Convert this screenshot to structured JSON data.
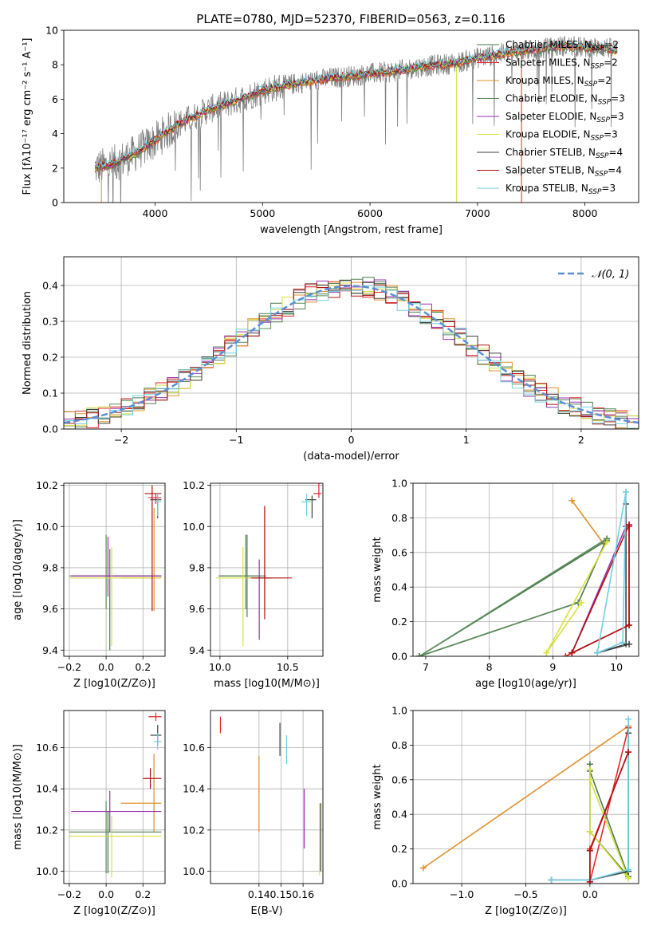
{
  "figure": {
    "title": "PLATE=0780, MJD=52370, FIBERID=0563, z=0.116"
  },
  "series_styles": [
    {
      "name": "Chabrier MILES",
      "nssp": "2",
      "color": "#4a7a4a"
    },
    {
      "name": "Salpeter MILES",
      "nssp": "2",
      "color": "#e8262a"
    },
    {
      "name": "Kroupa MILES",
      "nssp": "2",
      "color": "#e0902a"
    },
    {
      "name": "Chabrier ELODIE",
      "nssp": "3",
      "color": "#5a8a5a"
    },
    {
      "name": "Salpeter ELODIE",
      "nssp": "3",
      "color": "#9b30b0"
    },
    {
      "name": "Kroupa ELODIE",
      "nssp": "3",
      "color": "#d8e040"
    },
    {
      "name": "Chabrier STELIB",
      "nssp": "4",
      "color": "#404040"
    },
    {
      "name": "Salpeter STELIB",
      "nssp": "4",
      "color": "#b01010"
    },
    {
      "name": "Kroupa STELIB",
      "nssp": "3",
      "color": "#70d0e0"
    }
  ],
  "chart_data": [
    {
      "id": "spectrum",
      "type": "line",
      "title": "PLATE=0780, MJD=52370, FIBERID=0563, z=0.116",
      "xlabel": "wavelength [Angstrom, rest frame]",
      "ylabel": "Flux [fλ10⁻¹⁷ erg cm⁻² s⁻¹ A⁻¹]",
      "xlim": [
        3150,
        8500
      ],
      "ylim": [
        0,
        10
      ],
      "xticks": [
        4000,
        5000,
        6000,
        7000,
        8000
      ],
      "yticks": [
        0,
        2,
        4,
        6,
        8,
        10
      ],
      "grid": false,
      "legend": "right",
      "data_color": "#808080",
      "model_anchor_x": [
        3440,
        3600,
        3800,
        4000,
        4200,
        4500,
        4800,
        5000,
        5300,
        5600,
        5900,
        6200,
        6500,
        6800,
        7000,
        7200,
        7400,
        7600,
        7800,
        8000,
        8200,
        8300
      ],
      "model_anchor_y": [
        2.0,
        2.2,
        2.8,
        3.6,
        4.5,
        5.4,
        6.0,
        6.5,
        6.9,
        7.2,
        7.4,
        7.6,
        7.9,
        8.1,
        8.4,
        8.6,
        8.8,
        8.9,
        9.1,
        9.0,
        9.0,
        8.8
      ]
    },
    {
      "id": "residual-hist",
      "type": "histogram",
      "xlabel": "(data-model)/error",
      "ylabel": "Normed distribution",
      "xlim": [
        -2.5,
        2.5
      ],
      "ylim": [
        0,
        0.48
      ],
      "xticks": [
        -2,
        -1,
        0,
        1,
        2
      ],
      "yticks": [
        0.0,
        0.1,
        0.2,
        0.3,
        0.4
      ],
      "grid": true,
      "legend": "top-right",
      "gaussian_label": "𝒩(0, 1)",
      "gaussian_color": "#5b8fd6",
      "bin_width": 0.1
    },
    {
      "id": "age-vs-Z",
      "type": "errorbar",
      "xlabel": "Z [log10(Z/Z⊙)]",
      "ylabel": "age  [log10(age/yr)]",
      "xlim": [
        -0.23,
        0.32
      ],
      "ylim": [
        9.37,
        10.21
      ],
      "xticks": [
        -0.2,
        0.0,
        0.2
      ],
      "yticks": [
        9.4,
        9.6,
        9.8,
        10.0,
        10.2
      ],
      "grid": true,
      "points": [
        {
          "s": 0,
          "x": 0.02,
          "xe": [
            0.2,
            0.28
          ],
          "y": 9.76,
          "ye": [
            0.36,
            0.13
          ]
        },
        {
          "s": 1,
          "x": 0.27,
          "xe": [
            0.04,
            0.03
          ],
          "y": 10.14,
          "ye": [
            0.03,
            0.02
          ]
        },
        {
          "s": 2,
          "x": 0.26,
          "xe": [
            0.18,
            0.04
          ],
          "y": 9.75,
          "ye": [
            0.16,
            0.34
          ]
        },
        {
          "s": 3,
          "x": 0.0,
          "xe": [
            0.2,
            0.3
          ],
          "y": 9.76,
          "ye": [
            0.16,
            0.2
          ]
        },
        {
          "s": 4,
          "x": 0.01,
          "xe": [
            0.2,
            0.29
          ],
          "y": 9.76,
          "ye": [
            0.1,
            0.19
          ]
        },
        {
          "s": 5,
          "x": 0.03,
          "xe": [
            0.23,
            0.27
          ],
          "y": 9.75,
          "ye": [
            0.33,
            0.15
          ]
        },
        {
          "s": 6,
          "x": 0.28,
          "xe": [
            0.04,
            0.02
          ],
          "y": 10.13,
          "ye": [
            0.09,
            0.02
          ]
        },
        {
          "s": 7,
          "x": 0.25,
          "xe": [
            0.04,
            0.05
          ],
          "y": 10.16,
          "ye": [
            0.57,
            0.04
          ]
        },
        {
          "s": 8,
          "x": 0.28,
          "xe": [
            0.02,
            0.02
          ],
          "y": 10.12,
          "ye": [
            0.07,
            0.04
          ]
        }
      ]
    },
    {
      "id": "age-vs-mass",
      "type": "errorbar",
      "xlabel": "mass [log10(M/M⊙)]",
      "ylabel": "",
      "xlim": [
        9.93,
        10.76
      ],
      "ylim": [
        9.37,
        10.21
      ],
      "xticks": [
        10.0,
        10.5
      ],
      "yticks": [
        9.4,
        9.6,
        9.8,
        10.0,
        10.2
      ],
      "grid": true,
      "points": [
        {
          "s": 0,
          "x": 10.2,
          "xe": [
            0.2,
            0.1
          ],
          "y": 9.76,
          "ye": [
            0.2,
            0.2
          ]
        },
        {
          "s": 1,
          "x": 10.73,
          "xe": [
            0.04,
            0.02
          ],
          "y": 10.16,
          "ye": [
            0.02,
            0.06
          ]
        },
        {
          "s": 2,
          "x": 10.33,
          "xe": [
            0.05,
            0.05
          ],
          "y": 9.75,
          "ye": [
            0.16,
            0.34
          ]
        },
        {
          "s": 3,
          "x": 10.19,
          "xe": [
            0.2,
            0.15
          ],
          "y": 9.76,
          "ye": [
            0.16,
            0.2
          ]
        },
        {
          "s": 4,
          "x": 10.29,
          "xe": [
            0.1,
            0.08
          ],
          "y": 9.75,
          "ye": [
            0.3,
            0.09
          ]
        },
        {
          "s": 5,
          "x": 10.17,
          "xe": [
            0.2,
            0.1
          ],
          "y": 9.75,
          "ye": [
            0.33,
            0.15
          ]
        },
        {
          "s": 6,
          "x": 10.68,
          "xe": [
            0.05,
            0.03
          ],
          "y": 10.13,
          "ye": [
            0.09,
            0.02
          ]
        },
        {
          "s": 7,
          "x": 10.33,
          "xe": [
            0.1,
            0.2
          ],
          "y": 9.75,
          "ye": [
            0.2,
            0.35
          ]
        },
        {
          "s": 8,
          "x": 10.64,
          "xe": [
            0.04,
            0.03
          ],
          "y": 10.12,
          "ye": [
            0.07,
            0.04
          ]
        }
      ]
    },
    {
      "id": "weight-vs-age",
      "type": "line",
      "xlabel": "age  [log10(age/yr)]",
      "ylabel": "mass weight",
      "xlim": [
        6.8,
        10.35
      ],
      "ylim": [
        0,
        1.0
      ],
      "xticks": [
        7,
        8,
        9,
        10
      ],
      "yticks": [
        0.0,
        0.2,
        0.4,
        0.6,
        0.8,
        1.0
      ],
      "grid": true,
      "series": [
        {
          "s": 2,
          "x": [
            9.8,
            9.3
          ],
          "y": [
            0.65,
            0.9
          ]
        },
        {
          "s": 1,
          "x": [
            10.2,
            10.2,
            9.2,
            9.3
          ],
          "y": [
            0.75,
            0.18,
            0.0,
            0.02
          ]
        },
        {
          "s": 0,
          "x": [
            9.85,
            6.9,
            9.4,
            9.85
          ],
          "y": [
            0.67,
            0.0,
            0.31,
            0.68
          ]
        },
        {
          "s": 3,
          "x": [
            9.85,
            6.9,
            9.4
          ],
          "y": [
            0.68,
            0.0,
            0.31
          ]
        },
        {
          "s": 5,
          "x": [
            9.85,
            8.9,
            9.45
          ],
          "y": [
            0.66,
            0.02,
            0.31
          ]
        },
        {
          "s": 4,
          "x": [
            10.15,
            9.3
          ],
          "y": [
            0.75,
            0.02
          ]
        },
        {
          "s": 6,
          "x": [
            10.15,
            10.15,
            9.7,
            10.2
          ],
          "y": [
            0.88,
            0.07,
            0.02,
            0.07
          ]
        },
        {
          "s": 7,
          "x": [
            10.2,
            10.2,
            9.3,
            10.2
          ],
          "y": [
            0.76,
            0.18,
            0.02,
            0.76
          ]
        },
        {
          "s": 8,
          "x": [
            10.15,
            10.1,
            9.7,
            10.15
          ],
          "y": [
            0.95,
            0.08,
            0.02,
            0.95
          ]
        }
      ]
    },
    {
      "id": "mass-vs-Z",
      "type": "errorbar",
      "xlabel": "Z [log10(Z/Z⊙)]",
      "ylabel": "mass [log10(M/M⊙)]",
      "xlim": [
        -0.23,
        0.32
      ],
      "ylim": [
        9.94,
        10.78
      ],
      "xticks": [
        -0.2,
        0.0,
        0.2
      ],
      "yticks": [
        10.0,
        10.2,
        10.4,
        10.6
      ],
      "grid": true,
      "points": [
        {
          "s": 0,
          "x": 0.01,
          "xe": [
            0.21,
            0.29
          ],
          "y": 10.19,
          "ye": [
            0.2,
            0.1
          ]
        },
        {
          "s": 1,
          "x": 0.27,
          "xe": [
            0.04,
            0.03
          ],
          "y": 10.75,
          "ye": [
            0.02,
            0.02
          ]
        },
        {
          "s": 2,
          "x": 0.26,
          "xe": [
            0.18,
            0.04
          ],
          "y": 10.33,
          "ye": [
            0.14,
            0.24
          ]
        },
        {
          "s": 3,
          "x": 0.0,
          "xe": [
            0.2,
            0.3
          ],
          "y": 10.19,
          "ye": [
            0.2,
            0.15
          ]
        },
        {
          "s": 4,
          "x": 0.02,
          "xe": [
            0.21,
            0.28
          ],
          "y": 10.29,
          "ye": [
            0.1,
            0.1
          ]
        },
        {
          "s": 5,
          "x": 0.03,
          "xe": [
            0.23,
            0.27
          ],
          "y": 10.17,
          "ye": [
            0.2,
            0.1
          ]
        },
        {
          "s": 6,
          "x": 0.28,
          "xe": [
            0.04,
            0.02
          ],
          "y": 10.66,
          "ye": [
            0.05,
            0.05
          ]
        },
        {
          "s": 7,
          "x": 0.24,
          "xe": [
            0.04,
            0.06
          ],
          "y": 10.45,
          "ye": [
            0.05,
            0.05
          ]
        },
        {
          "s": 8,
          "x": 0.28,
          "xe": [
            0.02,
            0.02
          ],
          "y": 10.63,
          "ye": [
            0.04,
            0.04
          ]
        }
      ]
    },
    {
      "id": "mass-vs-ebv",
      "type": "errorbar",
      "xlabel": "E(B-V)",
      "ylabel": "",
      "xlim": [
        0.118,
        0.169
      ],
      "ylim": [
        9.94,
        10.78
      ],
      "xticks": [
        0.14,
        0.15,
        0.16
      ],
      "yticks": [
        10.0,
        10.2,
        10.4,
        10.6
      ],
      "grid": true,
      "points": [
        {
          "s": 1,
          "x": 0.1225,
          "xe": [
            0,
            0
          ],
          "y": 10.71,
          "ye": [
            0.04,
            0.04
          ]
        },
        {
          "s": 2,
          "x": 0.14,
          "xe": [
            0,
            0
          ],
          "y": 10.35,
          "ye": [
            0.16,
            0.21
          ]
        },
        {
          "s": 6,
          "x": 0.1495,
          "xe": [
            0,
            0
          ],
          "y": 10.64,
          "ye": [
            0.08,
            0.08
          ]
        },
        {
          "s": 8,
          "x": 0.1525,
          "xe": [
            0,
            0
          ],
          "y": 10.59,
          "ye": [
            0.07,
            0.07
          ]
        },
        {
          "s": 4,
          "x": 0.1605,
          "xe": [
            0,
            0
          ],
          "y": 10.25,
          "ye": [
            0.14,
            0.15
          ]
        },
        {
          "s": 5,
          "x": 0.1675,
          "xe": [
            0,
            0
          ],
          "y": 10.15,
          "ye": [
            0.17,
            0.18
          ]
        },
        {
          "s": 6,
          "x": 0.168,
          "xe": [
            0,
            0
          ],
          "y": 10.2,
          "ye": [
            0.2,
            0.13
          ]
        }
      ]
    },
    {
      "id": "weight-vs-Z",
      "type": "line",
      "xlabel": "Z [log10(Z/Z⊙)]",
      "ylabel": "mass weight",
      "xlim": [
        -1.38,
        0.38
      ],
      "ylim": [
        0,
        1.0
      ],
      "xticks": [
        -1.0,
        -0.5,
        0.0
      ],
      "yticks": [
        0.0,
        0.2,
        0.4,
        0.6,
        0.8,
        1.0
      ],
      "grid": true,
      "series": [
        {
          "s": 2,
          "x": [
            -1.3,
            0.3
          ],
          "y": [
            0.09,
            0.91
          ]
        },
        {
          "s": 1,
          "x": [
            0.3,
            0.0,
            0.0,
            0.3
          ],
          "y": [
            0.76,
            0.2,
            0.01,
            0.9
          ]
        },
        {
          "s": 0,
          "x": [
            0.0,
            0.0,
            0.3,
            0.0
          ],
          "y": [
            0.69,
            0.3,
            0.04,
            0.65
          ]
        },
        {
          "s": 5,
          "x": [
            0.0,
            0.0,
            0.3,
            0.0
          ],
          "y": [
            0.66,
            0.3,
            0.03,
            0.6
          ]
        },
        {
          "s": 4,
          "x": [
            -0.3,
            0.0
          ],
          "y": [
            0.02,
            0.02
          ]
        },
        {
          "s": 6,
          "x": [
            0.3,
            0.3,
            0.0,
            -0.3
          ],
          "y": [
            0.87,
            0.07,
            0.02,
            0.02
          ]
        },
        {
          "s": 8,
          "x": [
            0.3,
            0.3,
            0.0,
            -0.3
          ],
          "y": [
            0.95,
            0.08,
            0.02,
            0.02
          ]
        },
        {
          "s": 7,
          "x": [
            0.3,
            0.0,
            0.0
          ],
          "y": [
            0.76,
            0.19,
            0.01
          ]
        }
      ]
    }
  ]
}
